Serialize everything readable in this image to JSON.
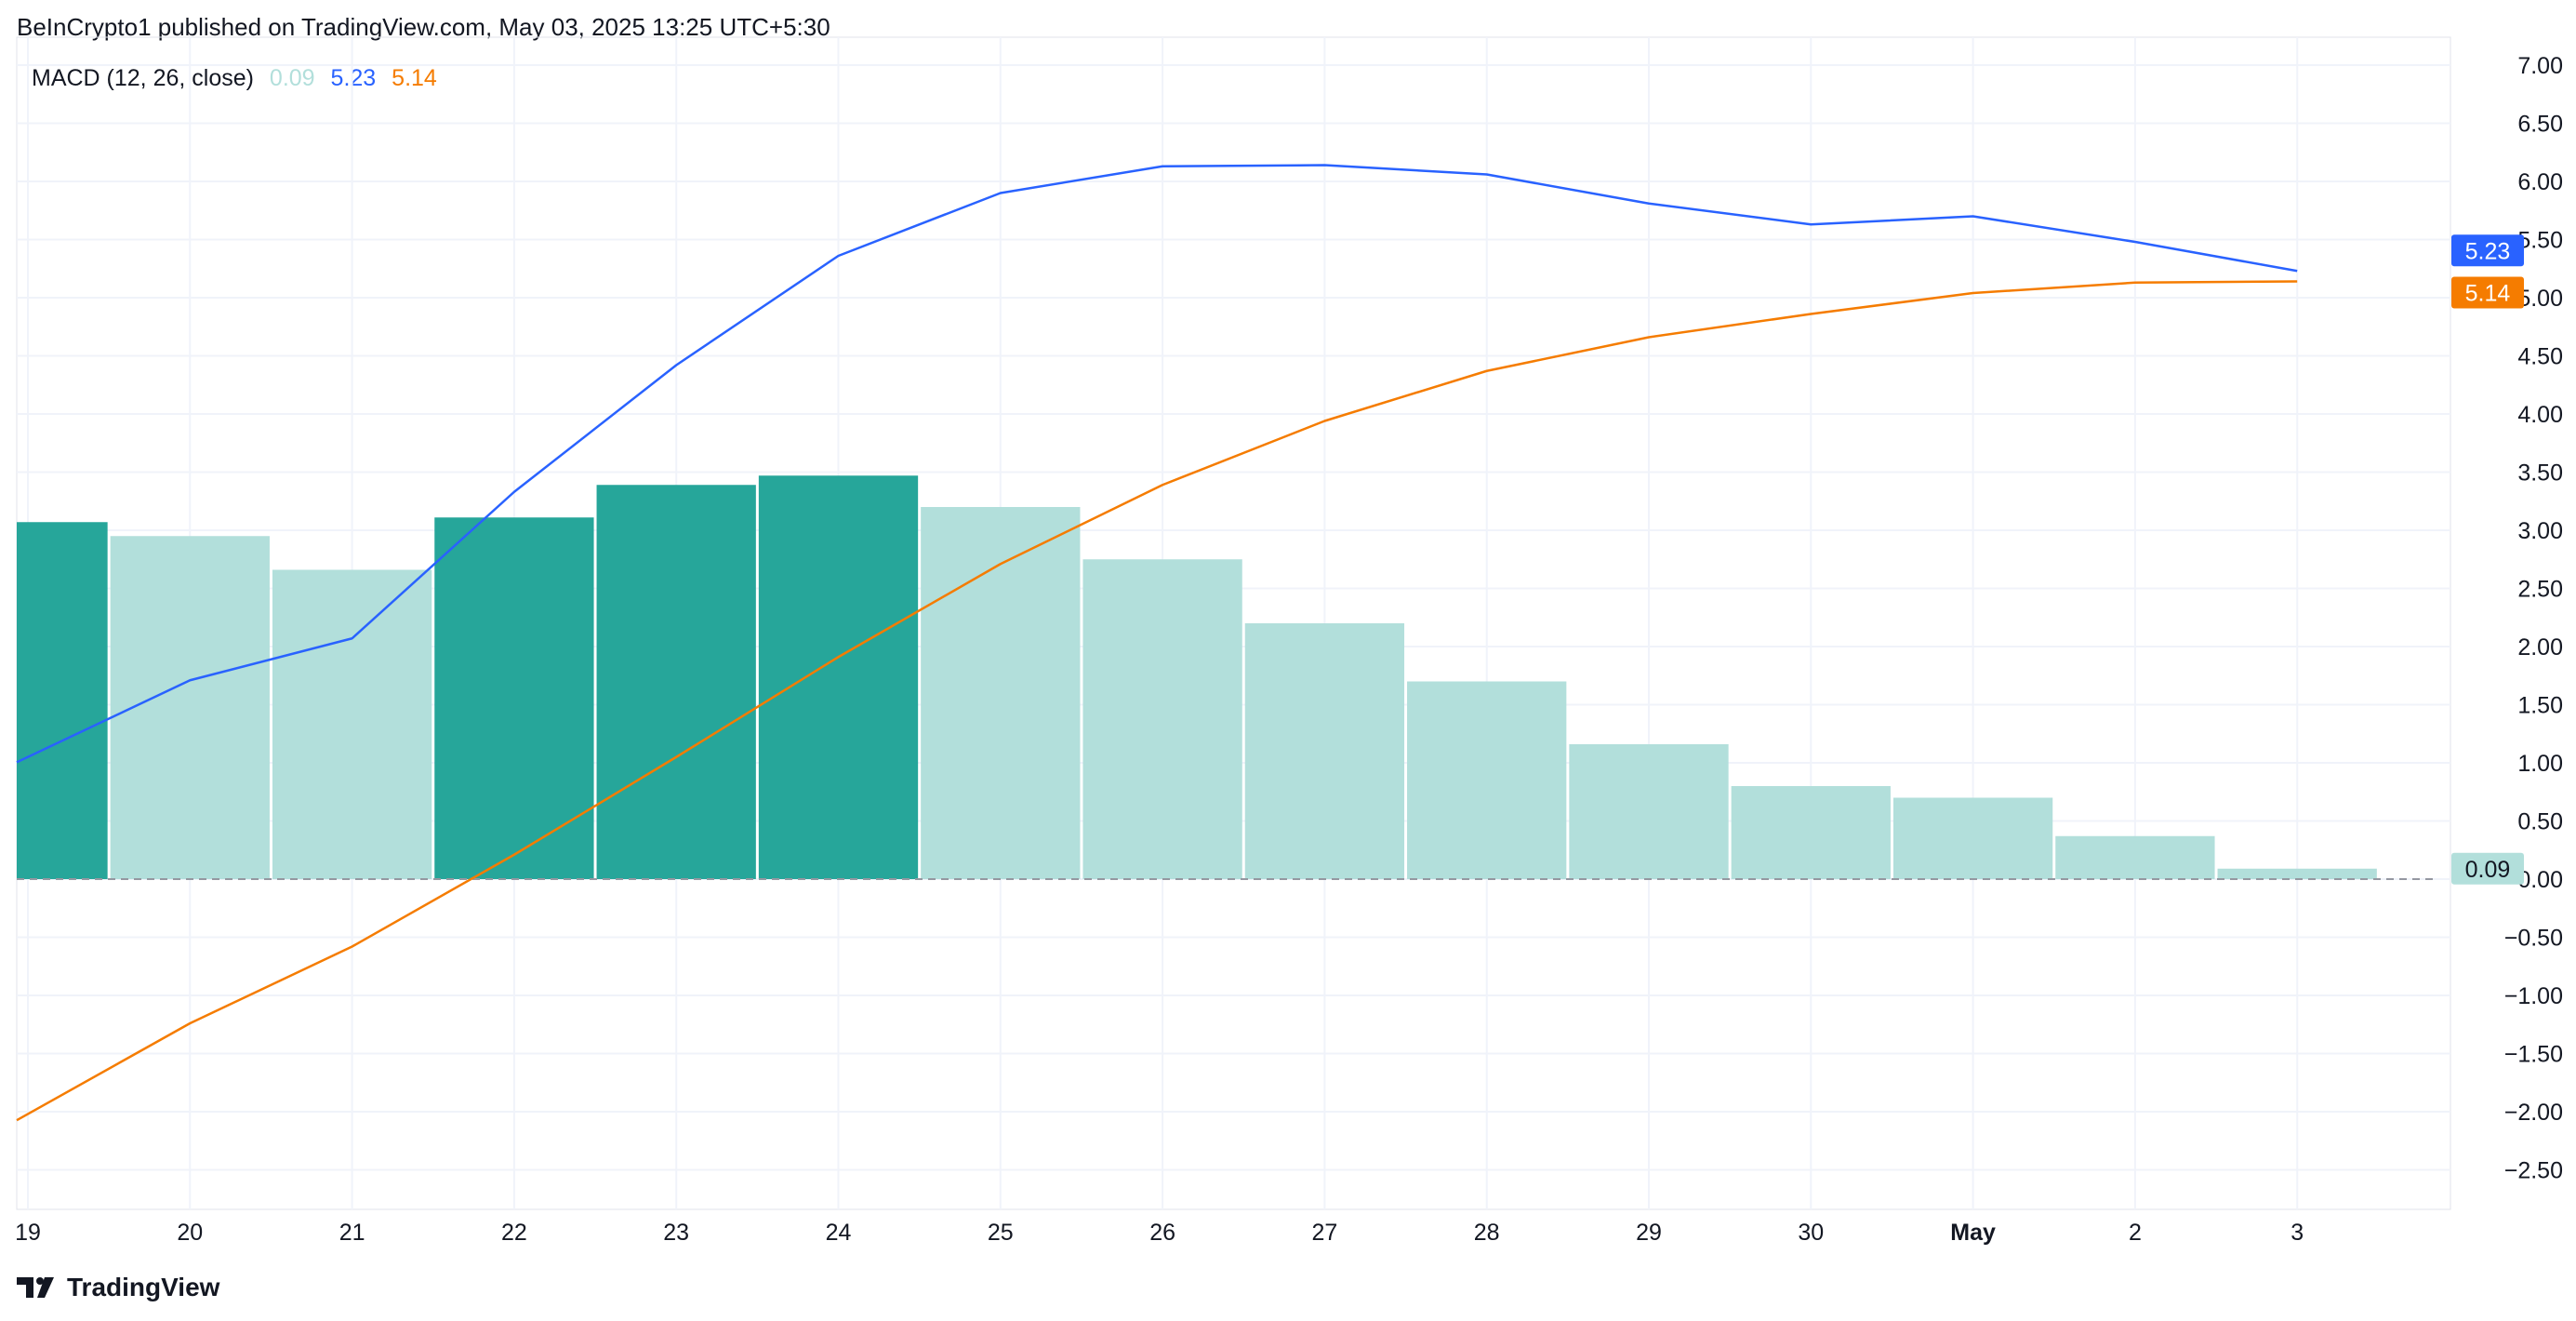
{
  "header": {
    "publish_line": "BeInCrypto1 published on TradingView.com, May 03, 2025 13:25 UTC+5:30"
  },
  "legend": {
    "title": "MACD (12, 26, close)",
    "histogram_value": "0.09",
    "macd_value": "5.23",
    "signal_value": "5.14"
  },
  "footer": {
    "brand": "TradingView"
  },
  "colors": {
    "macd": "#2962ff",
    "signal": "#f57c00",
    "hist_dark": "#26a69a",
    "hist_light": "#b2dfdb",
    "grid": "#f0f3fa",
    "axis_text": "#131722"
  },
  "icons": {
    "brand_logo": "tradingview-logo-icon"
  },
  "chart_data": {
    "type": "bar",
    "categories": [
      "19",
      "20",
      "21",
      "22",
      "23",
      "24",
      "25",
      "26",
      "27",
      "28",
      "29",
      "30",
      "May",
      "2",
      "3"
    ],
    "x_tick_labels": [
      "19",
      "20",
      "21",
      "22",
      "23",
      "24",
      "25",
      "26",
      "27",
      "28",
      "29",
      "30",
      "May",
      "2",
      "3"
    ],
    "series": [
      {
        "name": "Histogram",
        "type": "bar",
        "values": [
          3.07,
          2.95,
          2.66,
          3.11,
          3.39,
          3.47,
          3.2,
          2.75,
          2.2,
          1.7,
          1.16,
          0.8,
          0.7,
          0.37,
          0.09
        ],
        "shade": [
          "dark",
          "light",
          "light",
          "dark",
          "dark",
          "dark",
          "light",
          "light",
          "light",
          "light",
          "light",
          "light",
          "light",
          "light",
          "light"
        ]
      },
      {
        "name": "MACD",
        "type": "line",
        "values": [
          1.05,
          1.71,
          2.07,
          3.33,
          4.42,
          5.36,
          5.9,
          6.13,
          6.14,
          6.06,
          5.81,
          5.63,
          5.7,
          5.48,
          5.23
        ]
      },
      {
        "name": "Signal",
        "type": "line",
        "values": [
          -2.02,
          -1.24,
          -0.58,
          0.21,
          1.05,
          1.91,
          2.71,
          3.39,
          3.94,
          4.37,
          4.66,
          4.86,
          5.04,
          5.13,
          5.14
        ]
      }
    ],
    "y_tick_labels": [
      "7.00",
      "6.50",
      "6.00",
      "5.50",
      "5.00",
      "4.50",
      "4.00",
      "3.50",
      "3.00",
      "2.50",
      "2.00",
      "1.50",
      "1.00",
      "0.50",
      "0.00",
      "−0.50",
      "−1.00",
      "−1.50",
      "−2.00",
      "−2.50"
    ],
    "ylim": [
      -2.8,
      7.15
    ],
    "last_value_labels": {
      "macd": "5.23",
      "signal": "5.14",
      "histogram": "0.09"
    },
    "grid": true,
    "zero_line": true
  }
}
